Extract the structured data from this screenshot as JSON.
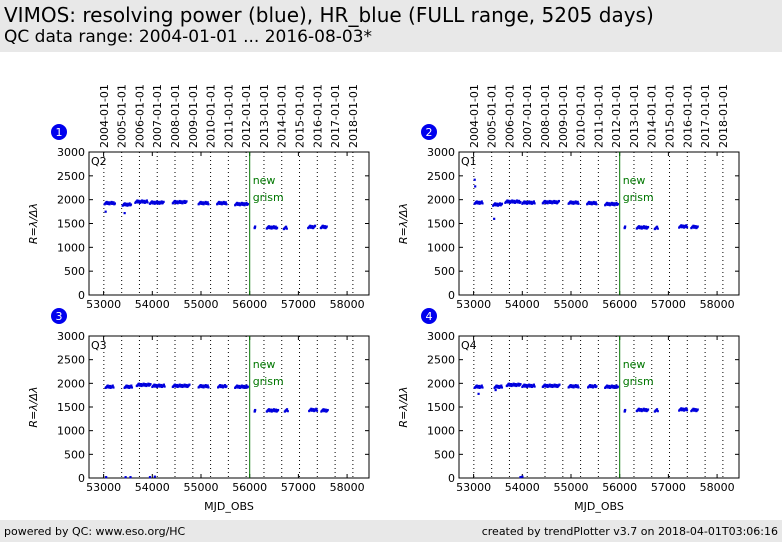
{
  "header": {
    "title": "VIMOS: resolving power (blue), HR_blue (FULL range, 5205 days)",
    "subtitle": "QC data range: 2004-01-01 ... 2016-08-03*"
  },
  "footer": {
    "left": "powered by QC: www.eso.org/HC",
    "right": "created by trendPlotter v3.7 on 2018-04-01T03:06:16"
  },
  "colors": {
    "data": "#0000dd",
    "event": "#007700",
    "badge": "#0000ee"
  },
  "chart_data": [
    {
      "type": "scatter",
      "panel": "1",
      "quadrant_label": "Q2",
      "xlabel": "",
      "ylabel": "R=λ/Δλ",
      "xlim": [
        52700,
        58450
      ],
      "ylim": [
        0,
        3000
      ],
      "xticks": [
        53000,
        54000,
        55000,
        56000,
        57000,
        58000
      ],
      "yticks": [
        0,
        500,
        1000,
        1500,
        2000,
        2500,
        3000
      ],
      "top_date_ticks": [
        "2004-01-01",
        "2005-01-01",
        "2006-01-01",
        "2007-01-01",
        "2008-01-01",
        "2009-01-01",
        "2010-01-01",
        "2011-01-01",
        "2012-01-01",
        "2013-01-01",
        "2014-01-01",
        "2015-01-01",
        "2016-01-01",
        "2017-01-01",
        "2018-01-01"
      ],
      "annotation": {
        "x": 56000,
        "lines": [
          "new",
          "grism"
        ]
      },
      "segments": [
        {
          "x_range": [
            53020,
            53230
          ],
          "y": 1930
        },
        {
          "x_range": [
            53390,
            53560
          ],
          "y": 1900
        },
        {
          "x_range": [
            53650,
            53900
          ],
          "y": 1960
        },
        {
          "x_range": [
            53950,
            54230
          ],
          "y": 1940
        },
        {
          "x_range": [
            54420,
            54700
          ],
          "y": 1950
        },
        {
          "x_range": [
            54950,
            55150
          ],
          "y": 1930
        },
        {
          "x_range": [
            55330,
            55520
          ],
          "y": 1930
        },
        {
          "x_range": [
            55700,
            55960
          ],
          "y": 1910
        },
        {
          "x_range": [
            56100,
            56110
          ],
          "y": 1430
        },
        {
          "x_range": [
            56350,
            56560
          ],
          "y": 1420
        },
        {
          "x_range": [
            56700,
            56760
          ],
          "y": 1410
        },
        {
          "x_range": [
            57200,
            57340
          ],
          "y": 1430
        },
        {
          "x_range": [
            57460,
            57580
          ],
          "y": 1430
        }
      ],
      "outliers": [
        {
          "x": 53040,
          "y": 1750
        },
        {
          "x": 53430,
          "y": 1720
        }
      ]
    },
    {
      "type": "scatter",
      "panel": "2",
      "quadrant_label": "Q1",
      "xlabel": "",
      "ylabel": "R=λ/Δλ",
      "xlim": [
        52700,
        58450
      ],
      "ylim": [
        0,
        3000
      ],
      "xticks": [
        53000,
        54000,
        55000,
        56000,
        57000,
        58000
      ],
      "yticks": [
        0,
        500,
        1000,
        1500,
        2000,
        2500,
        3000
      ],
      "top_date_ticks": [
        "2004-01-01",
        "2005-01-01",
        "2006-01-01",
        "2007-01-01",
        "2008-01-01",
        "2009-01-01",
        "2010-01-01",
        "2011-01-01",
        "2012-01-01",
        "2013-01-01",
        "2014-01-01",
        "2015-01-01",
        "2016-01-01",
        "2017-01-01",
        "2018-01-01"
      ],
      "annotation": {
        "x": 56000,
        "lines": [
          "new",
          "grism"
        ]
      },
      "segments": [
        {
          "x_range": [
            53020,
            53180
          ],
          "y": 1940
        },
        {
          "x_range": [
            53400,
            53580
          ],
          "y": 1900
        },
        {
          "x_range": [
            53650,
            53960
          ],
          "y": 1960
        },
        {
          "x_range": [
            54000,
            54250
          ],
          "y": 1940
        },
        {
          "x_range": [
            54420,
            54750
          ],
          "y": 1950
        },
        {
          "x_range": [
            54950,
            55150
          ],
          "y": 1940
        },
        {
          "x_range": [
            55330,
            55520
          ],
          "y": 1930
        },
        {
          "x_range": [
            55700,
            55960
          ],
          "y": 1910
        },
        {
          "x_range": [
            56100,
            56110
          ],
          "y": 1430
        },
        {
          "x_range": [
            56350,
            56580
          ],
          "y": 1420
        },
        {
          "x_range": [
            56720,
            56780
          ],
          "y": 1410
        },
        {
          "x_range": [
            57220,
            57380
          ],
          "y": 1440
        },
        {
          "x_range": [
            57470,
            57600
          ],
          "y": 1430
        }
      ],
      "outliers": [
        {
          "x": 53020,
          "y": 2420
        },
        {
          "x": 53030,
          "y": 2280
        },
        {
          "x": 53420,
          "y": 1600
        }
      ]
    },
    {
      "type": "scatter",
      "panel": "3",
      "quadrant_label": "Q3",
      "xlabel": "MJD_OBS",
      "ylabel": "R=λ/Δλ",
      "xlim": [
        52700,
        58450
      ],
      "ylim": [
        0,
        3000
      ],
      "xticks": [
        53000,
        54000,
        55000,
        56000,
        57000,
        58000
      ],
      "yticks": [
        0,
        500,
        1000,
        1500,
        2000,
        2500,
        3000
      ],
      "annotation": {
        "x": 56000,
        "lines": [
          "new",
          "grism"
        ]
      },
      "segments": [
        {
          "x_range": [
            53040,
            53200
          ],
          "y": 1930
        },
        {
          "x_range": [
            53430,
            53580
          ],
          "y": 1930
        },
        {
          "x_range": [
            53680,
            53960
          ],
          "y": 1970
        },
        {
          "x_range": [
            54000,
            54250
          ],
          "y": 1950
        },
        {
          "x_range": [
            54420,
            54760
          ],
          "y": 1950
        },
        {
          "x_range": [
            54950,
            55150
          ],
          "y": 1940
        },
        {
          "x_range": [
            55350,
            55520
          ],
          "y": 1940
        },
        {
          "x_range": [
            55700,
            55960
          ],
          "y": 1930
        },
        {
          "x_range": [
            56100,
            56110
          ],
          "y": 1430
        },
        {
          "x_range": [
            56350,
            56580
          ],
          "y": 1430
        },
        {
          "x_range": [
            56720,
            56780
          ],
          "y": 1430
        },
        {
          "x_range": [
            57220,
            57380
          ],
          "y": 1440
        },
        {
          "x_range": [
            57470,
            57600
          ],
          "y": 1430
        }
      ],
      "outliers": [
        {
          "x": 53050,
          "y": 20
        },
        {
          "x": 53450,
          "y": 20
        },
        {
          "x": 53550,
          "y": 20
        },
        {
          "x": 53950,
          "y": 20
        },
        {
          "x": 54050,
          "y": 30
        }
      ]
    },
    {
      "type": "scatter",
      "panel": "4",
      "quadrant_label": "Q4",
      "xlabel": "MJD_OBS",
      "ylabel": "R=λ/Δλ",
      "xlim": [
        52700,
        58450
      ],
      "ylim": [
        0,
        3000
      ],
      "xticks": [
        53000,
        54000,
        55000,
        56000,
        57000,
        58000
      ],
      "yticks": [
        0,
        500,
        1000,
        1500,
        2000,
        2500,
        3000
      ],
      "annotation": {
        "x": 56000,
        "lines": [
          "new",
          "grism"
        ]
      },
      "segments": [
        {
          "x_range": [
            53020,
            53180
          ],
          "y": 1930
        },
        {
          "x_range": [
            53430,
            53580
          ],
          "y": 1930
        },
        {
          "x_range": [
            53680,
            53960
          ],
          "y": 1970
        },
        {
          "x_range": [
            54000,
            54250
          ],
          "y": 1950
        },
        {
          "x_range": [
            54420,
            54760
          ],
          "y": 1950
        },
        {
          "x_range": [
            54950,
            55150
          ],
          "y": 1940
        },
        {
          "x_range": [
            55350,
            55520
          ],
          "y": 1940
        },
        {
          "x_range": [
            55700,
            55960
          ],
          "y": 1930
        },
        {
          "x_range": [
            56100,
            56110
          ],
          "y": 1430
        },
        {
          "x_range": [
            56350,
            56580
          ],
          "y": 1440
        },
        {
          "x_range": [
            56720,
            56780
          ],
          "y": 1430
        },
        {
          "x_range": [
            57220,
            57380
          ],
          "y": 1450
        },
        {
          "x_range": [
            57470,
            57600
          ],
          "y": 1440
        }
      ],
      "outliers": [
        {
          "x": 53100,
          "y": 1780
        },
        {
          "x": 53450,
          "y": 1860
        },
        {
          "x": 53960,
          "y": 20
        },
        {
          "x": 54000,
          "y": 30
        }
      ]
    }
  ]
}
